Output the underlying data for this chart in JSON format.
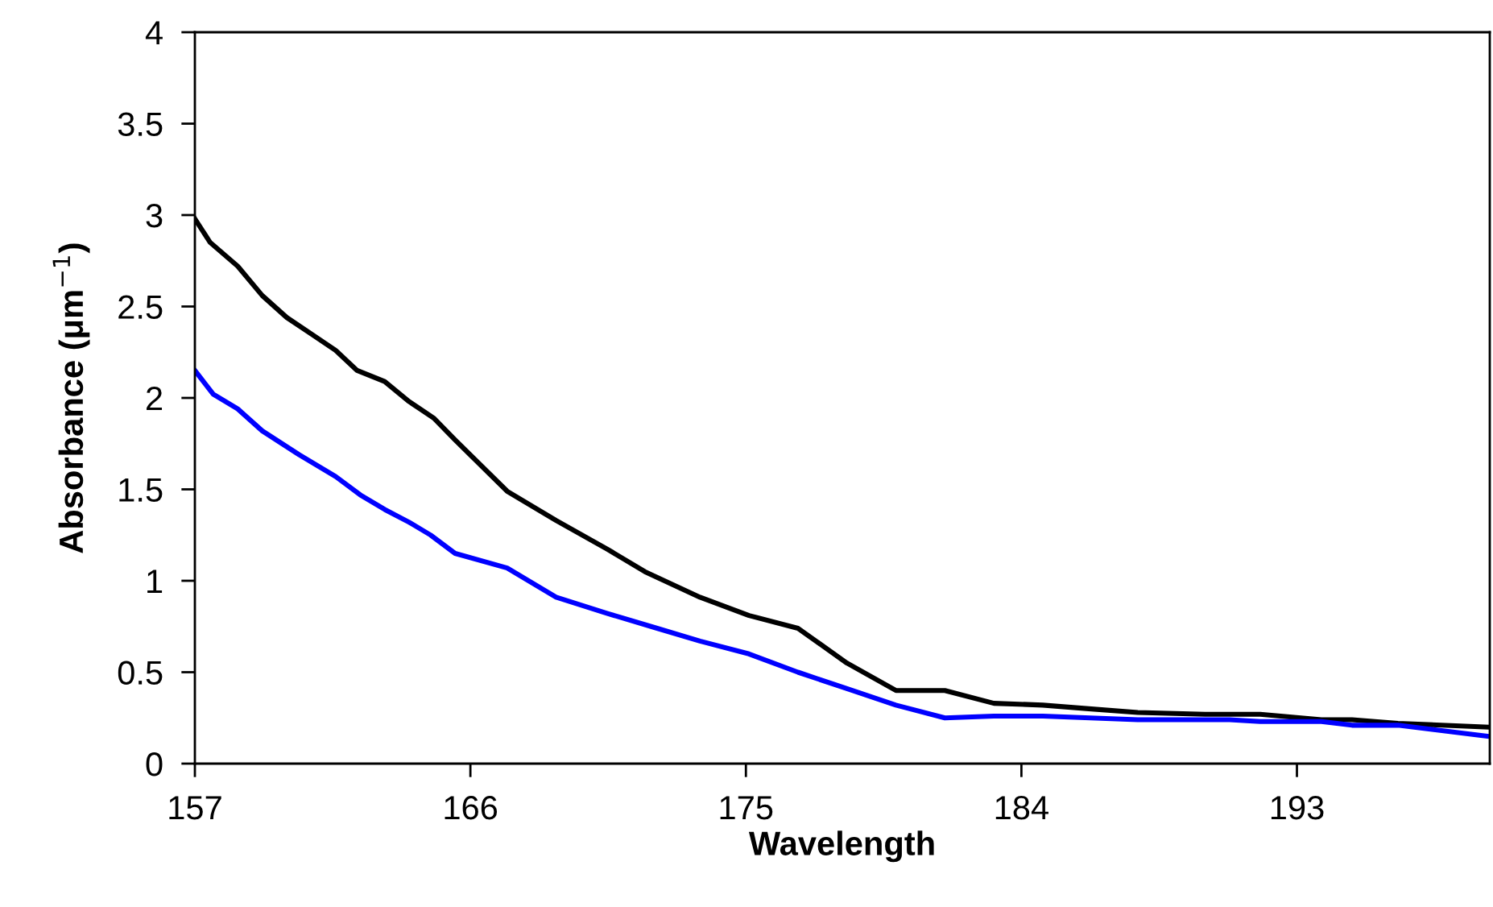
{
  "chart_data": {
    "type": "line",
    "xlabel": "Wavelength",
    "ylabel": "Absorbance (μm$^{−1}$)",
    "xlim": [
      157,
      199.3
    ],
    "xticks": [
      157,
      166,
      175,
      184,
      193
    ],
    "ylim": [
      0,
      4
    ],
    "yticks": [
      0,
      0.5,
      1,
      1.5,
      2,
      2.5,
      3,
      3.5,
      4
    ],
    "grid": false,
    "legend": false,
    "marker": "none",
    "line_style": "solid",
    "series": [
      {
        "color": "#000000",
        "x": [
          157,
          157.5,
          158.4,
          159.2,
          160,
          160.8,
          161.6,
          162.3,
          163.2,
          164,
          164.8,
          165.5,
          167.2,
          168.8,
          170.5,
          171.7,
          173.5,
          175.1,
          176.7,
          178.3,
          179.9,
          181.5,
          183.1,
          184.7,
          186.2,
          187.8,
          190,
          191.8,
          193.8,
          194.8,
          196.3,
          199.2
        ],
        "values": [
          2.98,
          2.85,
          2.72,
          2.56,
          2.44,
          2.35,
          2.26,
          2.15,
          2.09,
          1.98,
          1.89,
          1.77,
          1.49,
          1.33,
          1.17,
          1.05,
          0.91,
          0.81,
          0.74,
          0.55,
          0.4,
          0.4,
          0.33,
          0.32,
          0.3,
          0.28,
          0.27,
          0.27,
          0.24,
          0.24,
          0.22,
          0.2
        ]
      },
      {
        "color": "#0000ff",
        "x": [
          157,
          157.6,
          158.4,
          159.2,
          160.4,
          161.6,
          162.4,
          163.2,
          164,
          164.7,
          165.5,
          167.2,
          168.8,
          170.5,
          172.1,
          173.5,
          175.1,
          176.7,
          178.3,
          179.9,
          181.5,
          183.1,
          184.7,
          187.8,
          190.8,
          191.8,
          193.8,
          194.8,
          196.3,
          199.2
        ],
        "values": [
          2.15,
          2.02,
          1.94,
          1.82,
          1.69,
          1.57,
          1.47,
          1.39,
          1.32,
          1.25,
          1.15,
          1.07,
          0.91,
          0.82,
          0.74,
          0.67,
          0.6,
          0.5,
          0.41,
          0.32,
          0.25,
          0.26,
          0.26,
          0.24,
          0.24,
          0.23,
          0.23,
          0.21,
          0.21,
          0.15
        ]
      }
    ]
  }
}
